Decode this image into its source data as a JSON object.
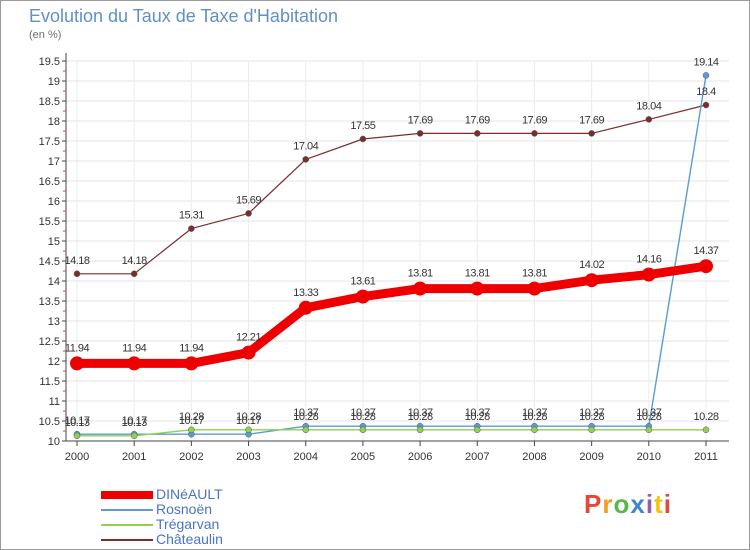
{
  "title": "Evolution du Taux de Taxe d'Habitation",
  "subtitle": "(en %)",
  "logo": {
    "text": "Proxiti",
    "colors": [
      "#e8463a",
      "#f39c1f",
      "#58b947",
      "#3d86d0",
      "#9b59b6",
      "#f1c40f",
      "#e8463a"
    ]
  },
  "chart_data": {
    "type": "line",
    "title": "Evolution du Taux de Taxe d'Habitation",
    "ylabel": "(en %)",
    "xlabel": "",
    "ylim": [
      10,
      19.5
    ],
    "y_ticks": [
      "10",
      "10.5",
      "11",
      "11.5",
      "12",
      "12.5",
      "13",
      "13.5",
      "14",
      "14.5",
      "15",
      "15.5",
      "16",
      "16.5",
      "17",
      "17.5",
      "18",
      "18.5",
      "19",
      "19.5"
    ],
    "categories": [
      "2000",
      "2001",
      "2002",
      "2003",
      "2004",
      "2005",
      "2006",
      "2007",
      "2008",
      "2009",
      "2010",
      "2011"
    ],
    "series": [
      {
        "name": "DINéAULT",
        "color": "#ee0000",
        "values": [
          11.94,
          11.94,
          11.94,
          12.21,
          13.33,
          13.61,
          13.81,
          13.81,
          13.81,
          14.02,
          14.16,
          14.37
        ],
        "labels": [
          "11.94",
          "11.94",
          "11.94",
          "12.21",
          "13.33",
          "13.61",
          "13.81",
          "13.81",
          "13.81",
          "14.02",
          "14.16",
          "14.37"
        ]
      },
      {
        "name": "Rosnoën",
        "color": "#5b9bd5",
        "values": [
          10.17,
          10.17,
          10.17,
          10.17,
          10.37,
          10.37,
          10.37,
          10.37,
          10.37,
          10.37,
          10.37,
          19.14
        ],
        "labels": [
          "10.17",
          "10.17",
          "10.17",
          "10.17",
          "10.37",
          "10.37",
          "10.37",
          "10.37",
          "10.37",
          "10.37",
          "10.37",
          "19.14"
        ]
      },
      {
        "name": "Trégarvan",
        "color": "#92d050",
        "values": [
          10.13,
          10.13,
          10.28,
          10.28,
          10.28,
          10.28,
          10.28,
          10.28,
          10.28,
          10.28,
          10.28,
          10.28
        ],
        "labels": [
          "10.13",
          "10.13",
          "10.28",
          "10.28",
          "10.28",
          "10.28",
          "10.28",
          "10.28",
          "10.28",
          "10.28",
          "10.28",
          "10.28"
        ]
      },
      {
        "name": "Châteaulin",
        "color": "#7b2d2d",
        "values": [
          14.18,
          14.18,
          15.31,
          15.69,
          17.04,
          17.55,
          17.69,
          17.69,
          17.69,
          17.69,
          18.04,
          18.4
        ],
        "labels": [
          "14.18",
          "14.18",
          "15.31",
          "15.69",
          "17.04",
          "17.55",
          "17.69",
          "17.69",
          "17.69",
          "17.69",
          "18.04",
          "18.4"
        ]
      }
    ],
    "legend_position": "bottom-left"
  }
}
